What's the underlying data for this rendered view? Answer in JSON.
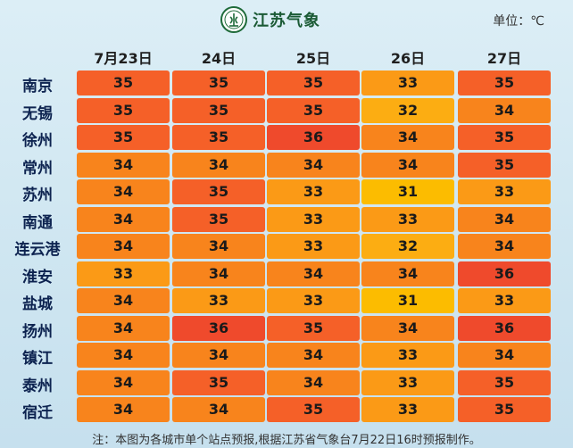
{
  "header": {
    "brand": "江苏气象",
    "logo_icon": "jiangsu-meteorology-emblem",
    "unit": "单位：℃"
  },
  "chart_data": {
    "type": "table",
    "columns": [
      "7月23日",
      "24日",
      "25日",
      "26日",
      "27日"
    ],
    "rows": [
      {
        "city": "南京",
        "values": [
          35,
          35,
          35,
          33,
          35
        ]
      },
      {
        "city": "无锡",
        "values": [
          35,
          35,
          35,
          32,
          34
        ]
      },
      {
        "city": "徐州",
        "values": [
          35,
          35,
          36,
          34,
          35
        ]
      },
      {
        "city": "常州",
        "values": [
          34,
          34,
          34,
          34,
          35
        ]
      },
      {
        "city": "苏州",
        "values": [
          34,
          35,
          33,
          31,
          33
        ]
      },
      {
        "city": "南通",
        "values": [
          34,
          35,
          33,
          33,
          34
        ]
      },
      {
        "city": "连云港",
        "values": [
          34,
          34,
          33,
          32,
          34
        ]
      },
      {
        "city": "淮安",
        "values": [
          33,
          34,
          34,
          34,
          36
        ]
      },
      {
        "city": "盐城",
        "values": [
          34,
          33,
          33,
          31,
          33
        ]
      },
      {
        "city": "扬州",
        "values": [
          34,
          36,
          35,
          34,
          36
        ]
      },
      {
        "city": "镇江",
        "values": [
          34,
          34,
          34,
          33,
          34
        ]
      },
      {
        "city": "泰州",
        "values": [
          34,
          35,
          34,
          33,
          35
        ]
      },
      {
        "city": "宿迁",
        "values": [
          34,
          34,
          35,
          33,
          35
        ]
      }
    ],
    "color_scale": {
      "31": "#fcbc00",
      "32": "#fcad12",
      "33": "#fb9a16",
      "34": "#f8841c",
      "35": "#f56028",
      "36": "#ef4a2c"
    }
  },
  "footer": {
    "note": "注：本图为各城市单个站点预报,根据江苏省气象台7月22日16时预报制作。"
  }
}
